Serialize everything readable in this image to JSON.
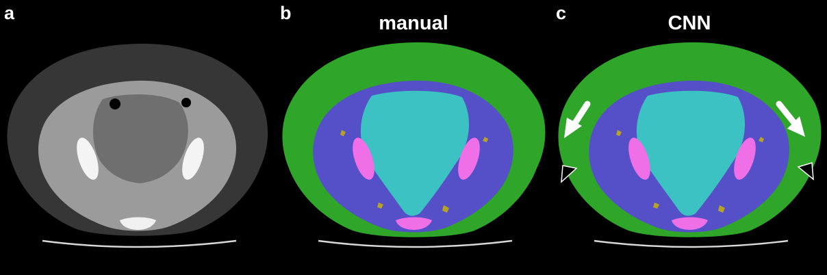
{
  "figure": {
    "panels": [
      {
        "letter": "a",
        "title": ""
      },
      {
        "letter": "b",
        "title": "manual"
      },
      {
        "letter": "c",
        "title": "CNN"
      }
    ]
  },
  "colors": {
    "background": "#000000",
    "subcutaneous_fat": "#2fa52a",
    "muscle": "#5550c8",
    "visceral": "#3cc2c2",
    "bone": "#ef6fe6",
    "intermuscular_fat": "#b6a226",
    "ct_soft_tissue": "#9a9a9a",
    "ct_fat": "#3a3a3a"
  },
  "annotations": [
    {
      "panel": "c",
      "type": "arrow",
      "color": "#ffffff",
      "count": 2
    },
    {
      "panel": "c",
      "type": "arrowhead",
      "color": "#000000",
      "count": 2
    }
  ]
}
